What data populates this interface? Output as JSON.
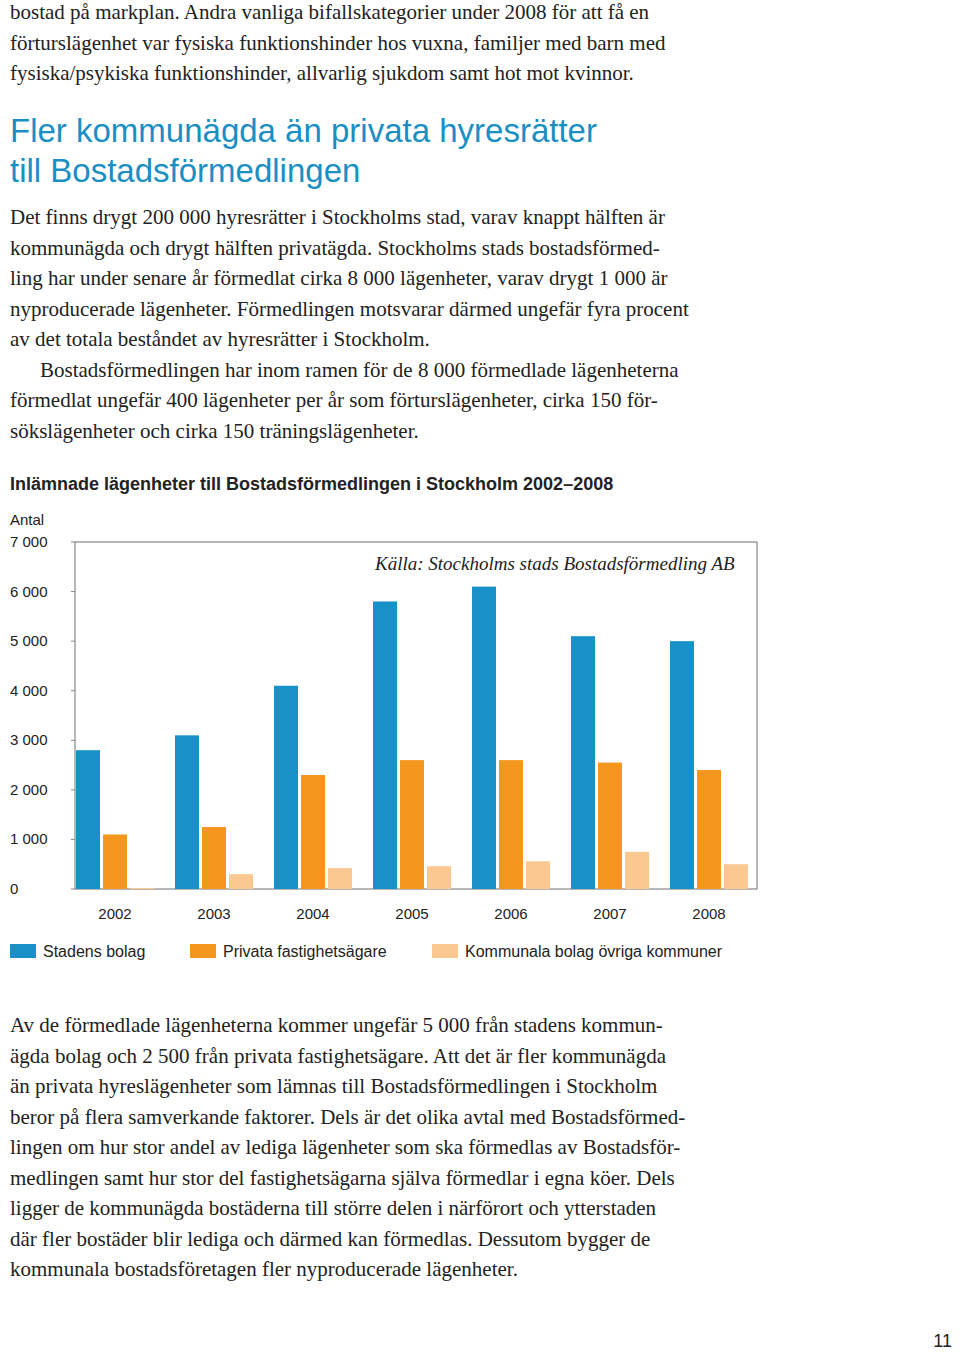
{
  "top_text": [
    "bostad på markplan. Andra vanliga bifallskategorier under 2008 för att få en",
    "förturslägenhet var fysiska funktionshinder hos vuxna, familjer med barn med",
    "fysiska/psykiska funktionshinder, allvarlig sjukdom samt hot mot kvinnor."
  ],
  "heading": [
    "Fler kommunägda än privata hyresrätter",
    "till Bostadsförmedlingen"
  ],
  "body": [
    [
      "Det finns drygt 200 000 hyresrätter i Stockholms stad, varav knappt hälften är",
      "kommunägda och drygt hälften privatägda. Stockholms stads bostadsförmed-",
      "ling har under senare år förmedlat cirka 8 000 lägenheter, varav drygt 1 000 är",
      "nyproducerade lägenheter. Förmedlingen motsvarar därmed ungefär fyra procent",
      "av det totala beståndet av hyresrätter i Stockholm."
    ],
    [
      "Bostadsförmedlingen har inom ramen för de 8 000 förmedlade lägenheterna",
      "förmedlat ungefär 400 lägenheter per år som förturslägenheter, cirka 150 för-",
      "sökslägenheter och cirka 150 träningslägenheter."
    ]
  ],
  "chart_data": {
    "type": "bar",
    "title": "Inlämnade lägenheter till Bostadsförmedlingen i Stockholm 2002–2008",
    "y_label": "Antal",
    "annotation": "Källa: Stockholms stads Bostadsförmedling AB",
    "categories": [
      "2002",
      "2003",
      "2004",
      "2005",
      "2006",
      "2007",
      "2008"
    ],
    "series": [
      {
        "name": "Stadens bolag",
        "color": "#1791c8",
        "values": [
          2800,
          3100,
          4100,
          5800,
          6100,
          5100,
          5000
        ]
      },
      {
        "name": "Privata fastighetsägare",
        "color": "#f5961f",
        "values": [
          1100,
          1250,
          2300,
          2600,
          2600,
          2550,
          2400
        ]
      },
      {
        "name": "Kommunala bolag övriga kommuner",
        "color": "#fcc891",
        "values": [
          20,
          300,
          420,
          460,
          560,
          750,
          500
        ]
      }
    ],
    "ylim": [
      0,
      7000
    ],
    "yticks": [
      0,
      {
        "value": 1000,
        "label": "1 000"
      },
      {
        "value": 2000,
        "label": "2 000"
      },
      {
        "value": 3000,
        "label": "3 000"
      },
      {
        "value": 4000,
        "label": "4 000"
      },
      {
        "value": 5000,
        "label": "5 000"
      },
      {
        "value": 6000,
        "label": "6 000"
      },
      {
        "value": 7000,
        "label": "7 000"
      }
    ],
    "grid": false,
    "legend": "bottom"
  },
  "bottom_text": [
    "Av de förmedlade lägenheterna kommer ungefär 5 000 från stadens kommun-",
    "ägda bolag och 2 500 från privata fastighetsägare. Att det är fler kommunägda",
    "än privata hyreslägenheter som lämnas till Bostadsförmedlingen i Stockholm",
    "beror på flera samverkande faktorer. Dels är det olika avtal med Bostadsförmed-",
    "lingen om hur stor andel av lediga lägenheter som ska förmedlas av Bostadsför-",
    "medlingen samt hur stor del fastighetsägarna själva förmedlar i egna köer. Dels",
    "ligger de kommunägda bostäderna till större delen i närförort och ytterstaden",
    "där fler bostäder blir lediga och därmed kan förmedlas. Dessutom bygger de",
    "kommunala bostadsföretagen fler nyproducerade lägenheter."
  ],
  "page_number": "11"
}
